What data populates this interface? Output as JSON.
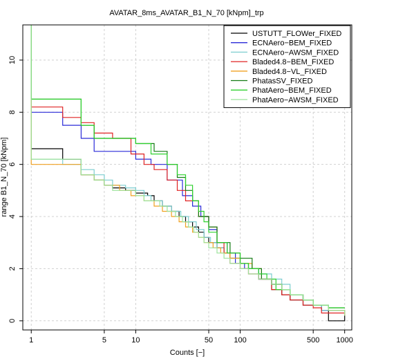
{
  "chart_data": {
    "type": "line",
    "title": "AVATAR_8ms_AVATAR_B1_N_70 [kNpm]_trp",
    "xlabel": "Counts [−]",
    "ylabel": "range B1_N_70 [kNpm]",
    "x_scale": "log",
    "xlim": [
      0.83,
      1170
    ],
    "ylim": [
      -0.35,
      11.35
    ],
    "x_ticks": [
      1,
      5,
      10,
      50,
      100,
      500,
      1000
    ],
    "y_ticks": [
      0,
      2,
      4,
      6,
      8,
      10
    ],
    "grid": true,
    "legend_position": "top-right",
    "series": [
      {
        "name": "USTUTT_FLOWer_FIXED",
        "color": "#000000",
        "x": [
          1,
          1,
          2,
          3,
          4,
          5,
          6,
          8,
          10,
          13,
          15,
          18,
          22,
          26,
          30,
          35,
          40,
          45,
          50,
          60,
          70,
          80,
          100,
          120,
          150,
          200,
          250,
          300,
          400,
          600,
          700,
          700,
          1000
        ],
        "y": [
          11.5,
          6.6,
          6.2,
          5.6,
          5.4,
          5.2,
          5.1,
          5.0,
          4.9,
          4.8,
          4.6,
          4.4,
          4.2,
          4.0,
          3.8,
          3.6,
          3.4,
          3.2,
          3.0,
          2.8,
          2.6,
          2.4,
          2.2,
          2.0,
          1.6,
          1.2,
          1.0,
          0.8,
          0.6,
          0.4,
          0.35,
          0.0,
          0.2
        ]
      },
      {
        "name": "ECNAero−BEM_FIXED",
        "color": "#2a2ad8",
        "x": [
          1,
          1,
          2,
          3,
          4,
          7,
          10,
          14,
          20,
          28,
          35,
          42,
          50,
          60,
          75,
          90,
          110,
          150,
          200,
          250,
          300,
          400,
          500,
          600,
          1000
        ],
        "y": [
          11.5,
          8.0,
          7.5,
          7.0,
          6.5,
          6.5,
          6.2,
          6.0,
          5.4,
          4.8,
          4.4,
          4.0,
          3.5,
          3.0,
          2.6,
          2.2,
          2.0,
          1.6,
          1.4,
          1.2,
          1.0,
          0.8,
          0.6,
          0.4,
          0.2
        ]
      },
      {
        "name": "ECNAero−AWSM_FIXED",
        "color": "#7ccdd0",
        "x": [
          1,
          1,
          2,
          3,
          4,
          5,
          6,
          8,
          10,
          12,
          14,
          18,
          22,
          27,
          32,
          38,
          45,
          52,
          60,
          70,
          80,
          100,
          120,
          150,
          200,
          250,
          300,
          400,
          500,
          600,
          1000
        ],
        "y": [
          11.5,
          6.2,
          6.0,
          5.8,
          5.6,
          5.4,
          5.2,
          5.1,
          5.0,
          4.8,
          4.6,
          4.4,
          4.2,
          4.0,
          3.8,
          3.5,
          3.2,
          3.0,
          2.8,
          2.6,
          2.4,
          2.2,
          2.0,
          1.8,
          1.6,
          1.4,
          1.0,
          0.8,
          0.6,
          0.4,
          0.2
        ]
      },
      {
        "name": "Bladed4.8−BEM_FIXED",
        "color": "#e02222",
        "x": [
          1,
          1,
          2,
          3,
          4,
          6,
          9,
          12,
          15,
          20,
          25,
          30,
          40,
          50,
          60,
          70,
          80,
          100,
          120,
          150,
          200,
          250,
          300,
          400,
          500,
          600,
          1000
        ],
        "y": [
          11.5,
          8.2,
          7.8,
          7.6,
          7.2,
          7.0,
          6.4,
          6.0,
          5.8,
          5.4,
          5.0,
          4.6,
          4.0,
          3.6,
          3.0,
          2.6,
          2.2,
          2.0,
          1.8,
          1.6,
          1.2,
          1.0,
          0.8,
          0.6,
          0.5,
          0.3,
          0.2
        ]
      },
      {
        "name": "Bladed4.8−VL_FIXED",
        "color": "#f0a020",
        "x": [
          1,
          1,
          3,
          4,
          5,
          7,
          9,
          12,
          15,
          18,
          22,
          26,
          30,
          35,
          40,
          45,
          55,
          65,
          80,
          100,
          130,
          160,
          200,
          250,
          300,
          400,
          500,
          700,
          1000
        ],
        "y": [
          11.5,
          6.0,
          5.6,
          5.4,
          5.2,
          5.0,
          4.8,
          4.6,
          4.4,
          4.2,
          4.0,
          3.8,
          3.6,
          3.4,
          3.2,
          3.0,
          2.8,
          2.6,
          2.4,
          2.2,
          2.0,
          1.6,
          1.4,
          1.2,
          1.0,
          0.8,
          0.6,
          0.4,
          0.2
        ]
      },
      {
        "name": "PhatasSV_FIXED",
        "color": "#137a13",
        "x": [
          1,
          1,
          3,
          4,
          7,
          10,
          15,
          20,
          25,
          30,
          35,
          40,
          50,
          60,
          80,
          100,
          130,
          160,
          200,
          250,
          300,
          400,
          500,
          700,
          1000
        ],
        "y": [
          11.5,
          8.5,
          7.5,
          7.0,
          7.0,
          6.8,
          6.5,
          6.0,
          5.5,
          5.0,
          4.6,
          4.0,
          3.6,
          3.0,
          2.6,
          2.4,
          2.0,
          1.6,
          1.4,
          1.2,
          1.0,
          0.8,
          0.6,
          0.5,
          0.5
        ]
      },
      {
        "name": "PhatAero−BEM_FIXED",
        "color": "#2ed12e",
        "x": [
          1,
          1,
          3,
          4,
          7,
          10,
          14,
          20,
          25,
          30,
          35,
          40,
          45,
          50,
          60,
          75,
          100,
          120,
          150,
          180,
          220,
          300,
          400,
          500,
          700,
          1000
        ],
        "y": [
          11.5,
          8.5,
          7.5,
          7.0,
          7.0,
          6.8,
          6.4,
          6.0,
          5.6,
          5.2,
          4.6,
          4.2,
          3.8,
          3.4,
          3.0,
          2.6,
          2.2,
          2.0,
          1.8,
          1.6,
          1.2,
          1.0,
          0.8,
          0.6,
          0.5,
          0.5
        ]
      },
      {
        "name": "PhatAero−AWSM_FIXED",
        "color": "#9be39b",
        "x": [
          1,
          1,
          3,
          4,
          5,
          6,
          8,
          10,
          12,
          14,
          17,
          20,
          24,
          28,
          32,
          36,
          40,
          45,
          50,
          60,
          70,
          80,
          100,
          120,
          150,
          200,
          250,
          300,
          400,
          500,
          700,
          1000
        ],
        "y": [
          11.5,
          6.2,
          5.6,
          5.4,
          5.2,
          5.0,
          5.0,
          4.8,
          4.6,
          4.6,
          4.4,
          4.2,
          4.0,
          3.8,
          3.6,
          3.4,
          3.2,
          3.0,
          2.8,
          2.6,
          2.4,
          2.2,
          2.0,
          1.8,
          1.6,
          1.4,
          1.2,
          1.0,
          0.8,
          0.6,
          0.4,
          0.2
        ]
      }
    ]
  }
}
